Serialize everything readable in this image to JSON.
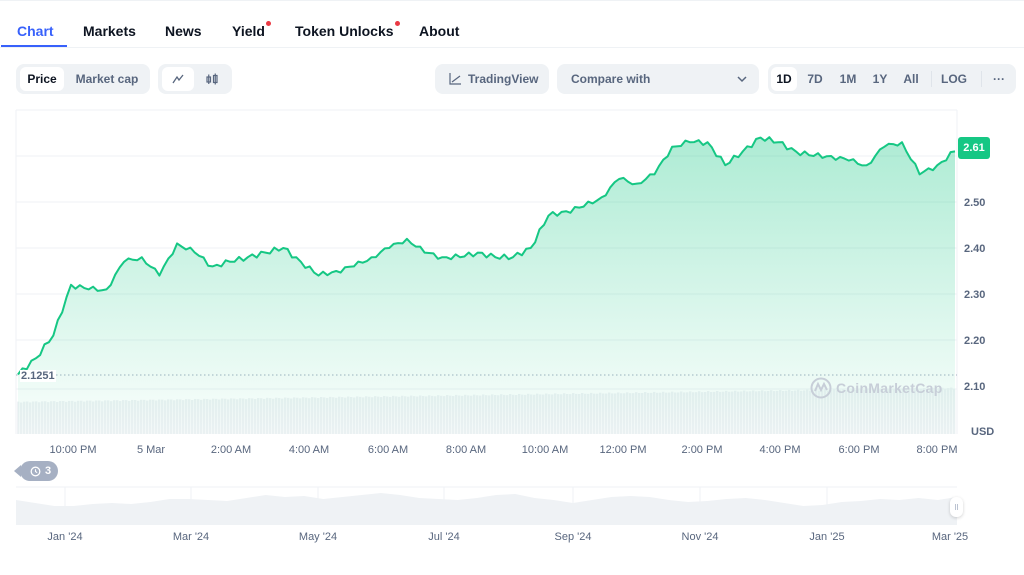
{
  "tabs": [
    {
      "label": "Chart",
      "active": true,
      "dot": false
    },
    {
      "label": "Markets",
      "active": false,
      "dot": false
    },
    {
      "label": "News",
      "active": false,
      "dot": false
    },
    {
      "label": "Yield",
      "active": false,
      "dot": true
    },
    {
      "label": "Token Unlocks",
      "active": false,
      "dot": true
    },
    {
      "label": "About",
      "active": false,
      "dot": false
    }
  ],
  "toolbar": {
    "metric_options": [
      "Price",
      "Market cap"
    ],
    "metric_selected": "Price",
    "chart_types": [
      "line-chart-icon",
      "candlestick-icon"
    ],
    "chart_type_selected": "line-chart-icon",
    "tradingview_label": "TradingView",
    "compare_placeholder": "Compare with",
    "ranges": [
      "1D",
      "7D",
      "1M",
      "1Y",
      "All"
    ],
    "range_selected": "1D",
    "log_label": "LOG",
    "more_label": "···"
  },
  "chart": {
    "current_price": "2.61",
    "open_price": "2.1251",
    "currency": "USD",
    "watermark": "CoinMarketCap",
    "history_badge_count": "3",
    "colors": {
      "line": "#16c784",
      "tag": "#16c784",
      "axis_text": "#58667e",
      "grid": "#eff2f5",
      "volume": "#eff2f5"
    }
  },
  "chart_data": {
    "type": "area",
    "title": "",
    "xlabel": "",
    "ylabel": "USD",
    "ylim": [
      2.05,
      2.69
    ],
    "y_ticks": [
      "2.10",
      "2.20",
      "2.30",
      "2.40",
      "2.50"
    ],
    "x_ticks": [
      "10:00 PM",
      "5 Mar",
      "2:00 AM",
      "4:00 AM",
      "6:00 AM",
      "8:00 AM",
      "10:00 AM",
      "12:00 PM",
      "2:00 PM",
      "4:00 PM",
      "6:00 PM",
      "8:00 PM"
    ],
    "grid": true,
    "series": [
      {
        "name": "Price",
        "x": [
          "20:20",
          "20:50",
          "21:20",
          "21:45",
          "22:10",
          "22:40",
          "23:10",
          "23:40",
          "00:10",
          "00:30",
          "00:50",
          "01:20",
          "01:50",
          "02:20",
          "02:50",
          "03:20",
          "03:50",
          "04:20",
          "04:50",
          "05:20",
          "05:50",
          "06:20",
          "06:50",
          "07:20",
          "07:50",
          "08:20",
          "08:50",
          "09:20",
          "09:50",
          "10:10",
          "10:30",
          "11:00",
          "11:30",
          "12:00",
          "12:30",
          "13:00",
          "13:30",
          "13:50",
          "14:10",
          "14:40",
          "15:10",
          "15:40",
          "16:00",
          "16:20",
          "16:50",
          "17:20",
          "17:50",
          "18:20",
          "18:50",
          "19:20",
          "19:40",
          "20:00",
          "20:20",
          "20:35"
        ],
        "values": [
          2.125,
          2.16,
          2.21,
          2.32,
          2.31,
          2.31,
          2.37,
          2.38,
          2.34,
          2.41,
          2.39,
          2.36,
          2.37,
          2.38,
          2.39,
          2.4,
          2.37,
          2.34,
          2.35,
          2.36,
          2.38,
          2.4,
          2.42,
          2.39,
          2.38,
          2.38,
          2.39,
          2.38,
          2.38,
          2.4,
          2.47,
          2.48,
          2.49,
          2.51,
          2.55,
          2.54,
          2.56,
          2.62,
          2.63,
          2.63,
          2.58,
          2.61,
          2.64,
          2.63,
          2.61,
          2.6,
          2.6,
          2.59,
          2.58,
          2.62,
          2.63,
          2.56,
          2.58,
          2.61
        ]
      }
    ],
    "navigator": {
      "x_ticks": [
        "Jan '24",
        "Mar '24",
        "May '24",
        "Jul '24",
        "Sep '24",
        "Nov '24",
        "Jan '25",
        "Mar '25"
      ]
    }
  }
}
